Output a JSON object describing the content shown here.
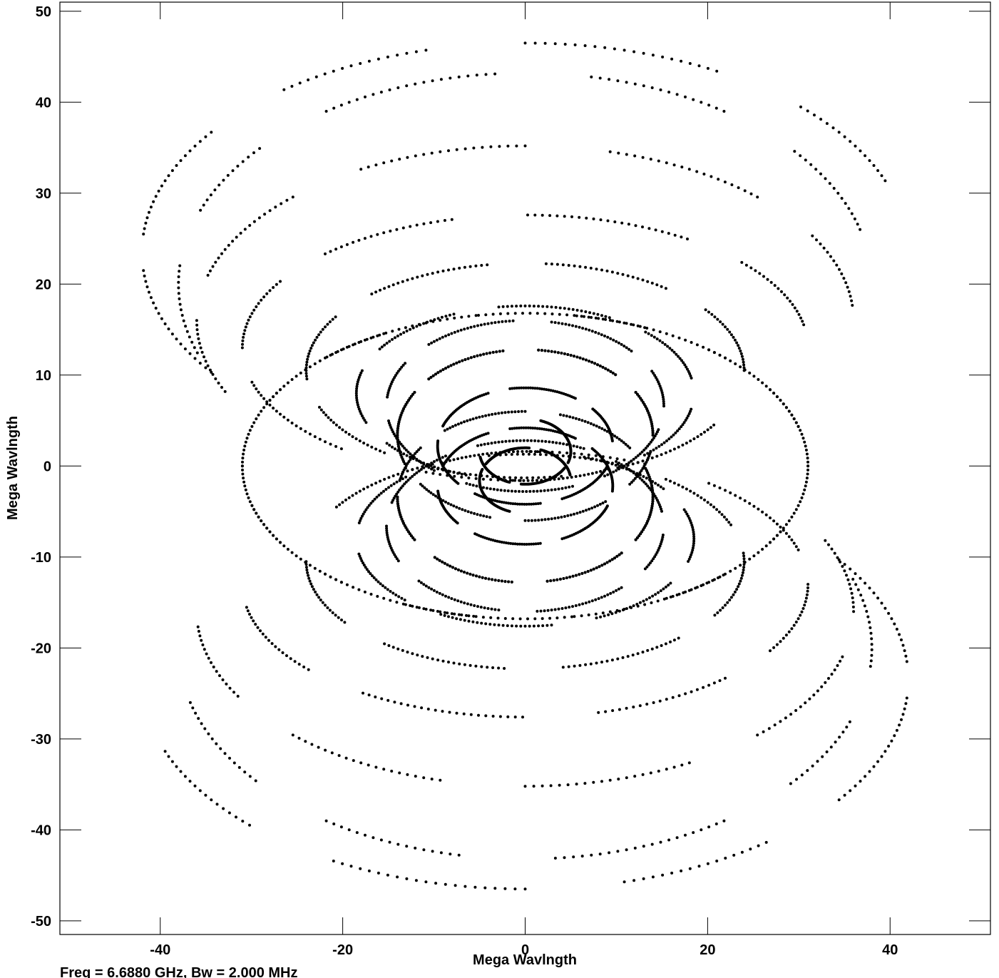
{
  "chart_data": {
    "type": "scatter",
    "description_kind": "uv-coverage",
    "xlabel": "Mega Wavlngth",
    "ylabel": "Mega Wavlngth",
    "xlim": [
      -51,
      51
    ],
    "ylim": [
      -51.5,
      51
    ],
    "xticks": [
      -40,
      -20,
      0,
      20,
      40
    ],
    "yticks": [
      50,
      40,
      30,
      20,
      10,
      0,
      -10,
      -20,
      -30,
      -40,
      -50
    ],
    "grid": false,
    "legend": "none",
    "point_color": "#000000",
    "footer": "Freq = 6.6880 GHz, Bw = 2.000 MHz",
    "series": [
      {
        "center": [
          0,
          1.6
        ],
        "a": 5,
        "b": 3.6,
        "arcs": [
          [
            190,
            250
          ],
          [
            265,
            330
          ],
          [
            340,
            430
          ]
        ]
      },
      {
        "center": [
          0,
          2.2
        ],
        "a": 9.6,
        "b": 6.4,
        "arcs": [
          [
            5,
            40
          ],
          [
            55,
            100
          ],
          [
            115,
            160
          ],
          [
            175,
            220
          ],
          [
            235,
            280
          ],
          [
            295,
            340
          ]
        ]
      },
      {
        "center": [
          0,
          3.4
        ],
        "a": 14,
        "b": 9.4,
        "arcs": [
          [
            0,
            30
          ],
          [
            45,
            85
          ],
          [
            100,
            140
          ],
          [
            150,
            200
          ],
          [
            215,
            255
          ],
          [
            270,
            310
          ],
          [
            325,
            350
          ]
        ]
      },
      {
        "center": [
          0,
          6.6
        ],
        "a": 15.2,
        "b": 9.4,
        "arcs": [
          [
            0,
            25
          ],
          [
            40,
            80
          ],
          [
            95,
            135
          ],
          [
            150,
            175
          ],
          [
            190,
            230
          ],
          [
            245,
            290
          ],
          [
            305,
            345
          ]
        ]
      },
      {
        "center": [
          0,
          8.0
        ],
        "a": 18.5,
        "b": 9.6,
        "arcs": [
          [
            10,
            45
          ],
          [
            60,
            100
          ],
          [
            115,
            150
          ],
          [
            165,
            200
          ],
          [
            215,
            250
          ],
          [
            265,
            300
          ],
          [
            315,
            350
          ]
        ]
      },
      {
        "center": [
          0,
          10.5
        ],
        "a": 24,
        "b": 11.8,
        "arcs": [
          [
            0,
            35
          ],
          [
            50,
            85
          ],
          [
            100,
            135
          ],
          [
            150,
            185
          ],
          [
            200,
            230
          ],
          [
            245,
            280
          ],
          [
            295,
            330
          ]
        ]
      },
      {
        "center": [
          0,
          13.0
        ],
        "a": 31,
        "b": 14.6,
        "arcs": [
          [
            10,
            40
          ],
          [
            55,
            90
          ],
          [
            105,
            135
          ],
          [
            150,
            180
          ],
          [
            195,
            230
          ],
          [
            245,
            270
          ]
        ]
      },
      {
        "center": [
          0,
          16.0
        ],
        "a": 36,
        "b": 19.2,
        "arcs": [
          [
            5,
            30
          ],
          [
            45,
            75
          ],
          [
            90,
            120
          ],
          [
            135,
            165
          ],
          [
            180,
            205
          ]
        ]
      },
      {
        "center": [
          0,
          20.0
        ],
        "a": 38,
        "b": 23.2,
        "arcs": [
          [
            15,
            40
          ],
          [
            55,
            80
          ],
          [
            95,
            125
          ],
          [
            140,
            160
          ],
          [
            175,
            200
          ]
        ]
      },
      {
        "center": [
          0,
          23.5
        ],
        "a": 42,
        "b": 23.0,
        "arcs": [
          [
            20,
            45
          ],
          [
            60,
            90
          ],
          [
            105,
            130
          ],
          [
            145,
            175
          ],
          [
            185,
            215
          ]
        ]
      },
      {
        "center": [
          0,
          0
        ],
        "a": 31,
        "b": 16.8,
        "arcs": [
          [
            0,
            30
          ],
          [
            45,
            80
          ],
          [
            100,
            135
          ],
          [
            150,
            180
          ],
          [
            195,
            230
          ],
          [
            245,
            280
          ],
          [
            300,
            335
          ]
        ]
      },
      {
        "center": [
          0,
          -3.4
        ],
        "a": 14,
        "b": 9.4,
        "arcs": [
          [
            180,
            210
          ],
          [
            225,
            265
          ],
          [
            280,
            320
          ],
          [
            330,
            380
          ]
        ]
      }
    ]
  }
}
